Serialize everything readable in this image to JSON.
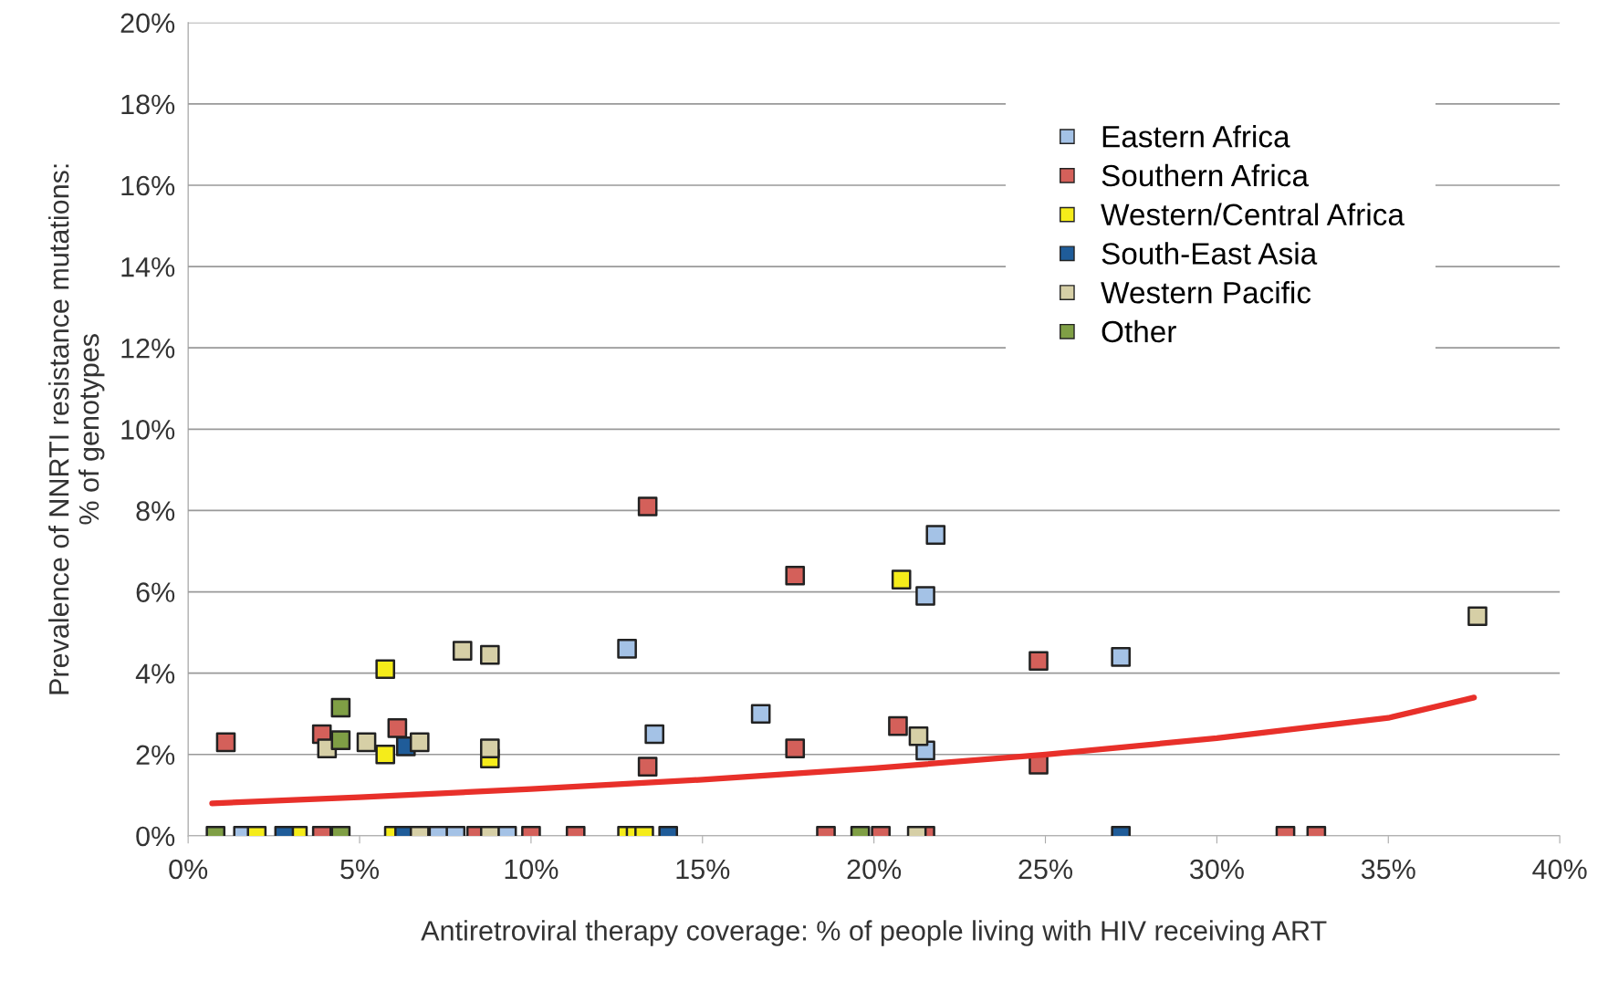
{
  "chart_data": {
    "type": "scatter",
    "xlabel": "Antiretroviral therapy coverage: % of people living with HIV receiving ART",
    "ylabel": "Prevalence of NNRTI resistance mutations:\n% of genotypes",
    "xlim": [
      0,
      40
    ],
    "xticks": [
      {
        "value": 0,
        "label": "0%"
      },
      {
        "value": 5,
        "label": "5%"
      },
      {
        "value": 10,
        "label": "10%"
      },
      {
        "value": 15,
        "label": "15%"
      },
      {
        "value": 20,
        "label": "20%"
      },
      {
        "value": 25,
        "label": "25%"
      },
      {
        "value": 30,
        "label": "30%"
      },
      {
        "value": 35,
        "label": "35%"
      },
      {
        "value": 40,
        "label": "40%"
      }
    ],
    "ylim": [
      0,
      20
    ],
    "yticks": [
      {
        "value": 0,
        "label": "0%"
      },
      {
        "value": 2,
        "label": "2%"
      },
      {
        "value": 4,
        "label": "4%"
      },
      {
        "value": 6,
        "label": "6%"
      },
      {
        "value": 8,
        "label": "8%"
      },
      {
        "value": 10,
        "label": "10%"
      },
      {
        "value": 12,
        "label": "12%"
      },
      {
        "value": 14,
        "label": "14%"
      },
      {
        "value": 16,
        "label": "16%"
      },
      {
        "value": 18,
        "label": "18%"
      },
      {
        "value": 20,
        "label": "20%"
      }
    ],
    "grid": "y",
    "legend": "top right",
    "marker": "square",
    "series": [
      {
        "name": "Eastern Africa",
        "color": "#a4c2e6",
        "x": [
          12.8,
          21.8,
          21.5,
          27.2,
          16.7,
          13.6,
          21.5,
          1.6,
          7.3,
          7.8,
          9.3
        ],
        "values": [
          4.6,
          7.4,
          5.9,
          4.4,
          3.0,
          2.5,
          2.1,
          0,
          0,
          0,
          0
        ]
      },
      {
        "name": "Southern Africa",
        "color": "#d4605a",
        "x": [
          1.1,
          3.9,
          6.1,
          13.4,
          13.4,
          17.7,
          17.7,
          20.7,
          24.8,
          24.8,
          3.9,
          8.4,
          10.0,
          11.3,
          18.6,
          20.2,
          21.5,
          32.0,
          32.9
        ],
        "values": [
          2.3,
          2.5,
          2.65,
          8.1,
          1.7,
          6.4,
          2.15,
          2.7,
          4.3,
          1.75,
          0,
          0,
          0,
          0,
          0,
          0,
          0,
          0,
          0
        ]
      },
      {
        "name": "Western/Central Africa",
        "color": "#f5ec1a",
        "x": [
          5.75,
          5.75,
          8.8,
          20.8,
          2.0,
          3.2,
          6.0,
          12.8,
          13.05,
          13.3
        ],
        "values": [
          4.1,
          2.0,
          1.9,
          6.3,
          0,
          0,
          0,
          0,
          0,
          0
        ]
      },
      {
        "name": "South-East Asia",
        "color": "#1f5c99",
        "x": [
          6.35,
          2.8,
          6.3,
          14.0,
          27.2
        ],
        "values": [
          2.2,
          0,
          0,
          0,
          0
        ]
      },
      {
        "name": "Western Pacific",
        "color": "#d6cfa6",
        "x": [
          8.0,
          8.8,
          4.05,
          5.2,
          6.75,
          8.8,
          21.3,
          37.6,
          6.75,
          8.8,
          21.25
        ],
        "values": [
          4.55,
          4.45,
          2.15,
          2.3,
          2.3,
          2.15,
          2.45,
          5.4,
          0,
          0,
          0
        ]
      },
      {
        "name": "Other",
        "color": "#7f9f45",
        "x": [
          4.45,
          4.45,
          0.8,
          4.45,
          19.6
        ],
        "values": [
          3.15,
          2.35,
          0,
          0,
          0
        ]
      },
      {
        "type": "line",
        "marker": "none",
        "color": "#e8302a",
        "x": [
          0.7,
          5,
          10,
          15,
          20,
          25,
          30,
          35,
          37.5
        ],
        "values": [
          0.8,
          0.95,
          1.15,
          1.38,
          1.66,
          2.0,
          2.4,
          2.9,
          3.4
        ]
      }
    ]
  }
}
